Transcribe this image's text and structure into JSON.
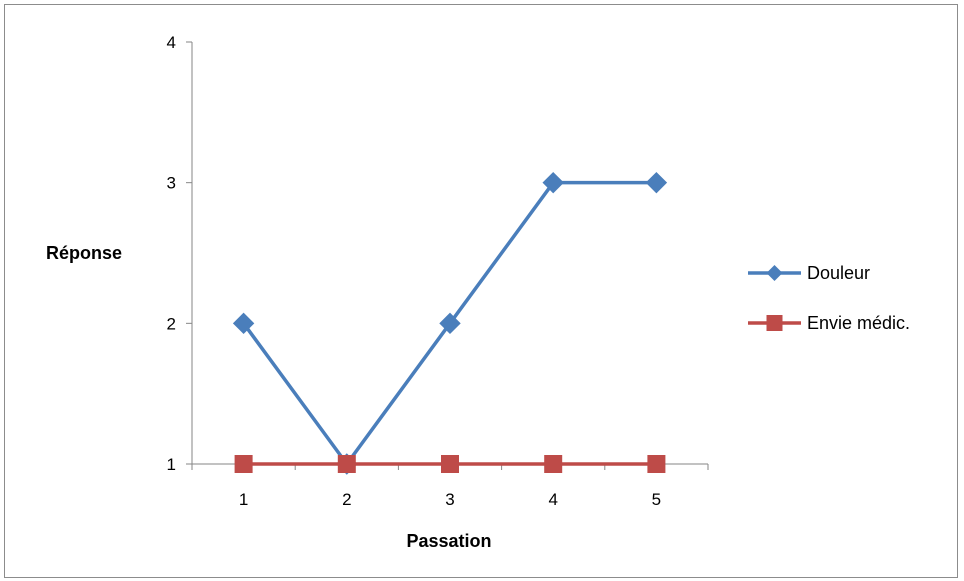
{
  "chart_data": {
    "type": "line",
    "x": [
      1,
      2,
      3,
      4,
      5
    ],
    "xlabel": "Passation",
    "ylabel": "Réponse",
    "ylim": [
      1,
      4
    ],
    "yticks": [
      1,
      2,
      3,
      4
    ],
    "xticks": [
      1,
      2,
      3,
      4,
      5
    ],
    "grid": false,
    "legend_position": "right",
    "series": [
      {
        "name": "Douleur",
        "values": [
          2,
          1,
          2,
          3,
          3
        ],
        "color": "#4a7ebb",
        "marker": "diamond"
      },
      {
        "name": "Envie médic.",
        "values": [
          1,
          1,
          1,
          1,
          1
        ],
        "color": "#be4b48",
        "marker": "square"
      }
    ]
  }
}
